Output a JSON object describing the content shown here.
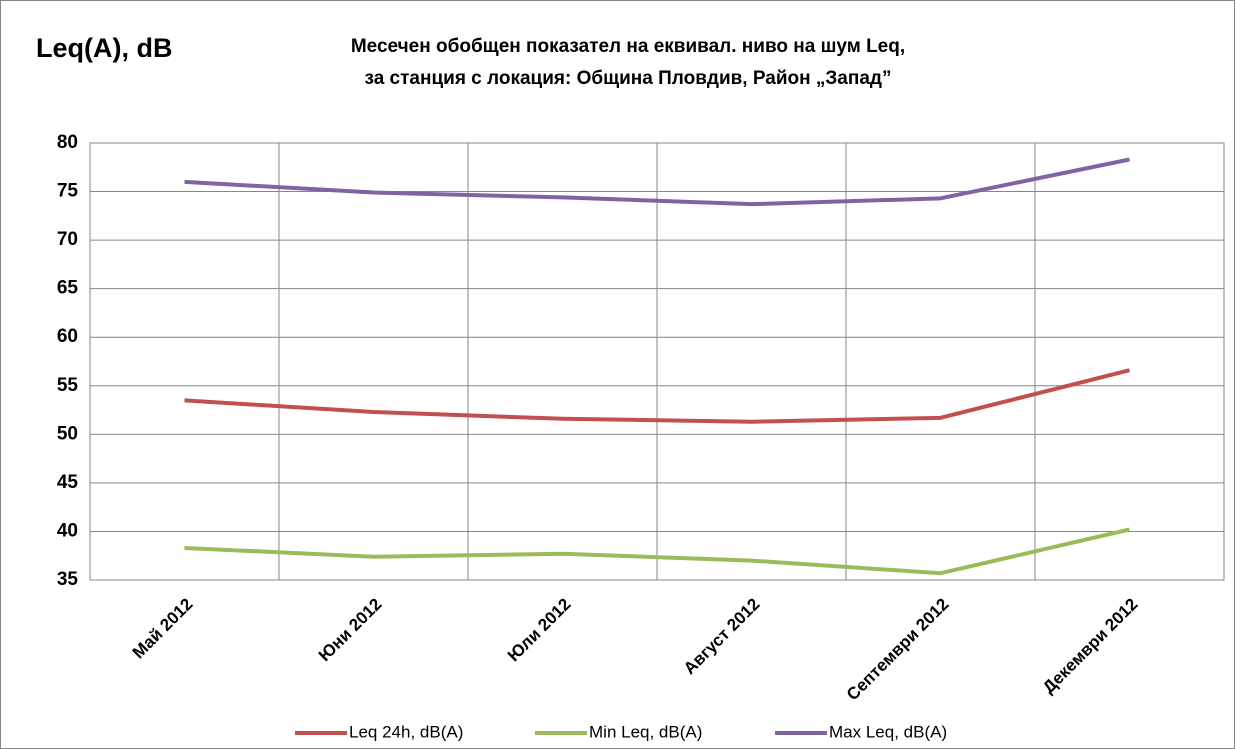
{
  "chart_data": {
    "type": "line",
    "title": [
      "Месечен обобщен показател на еквивал. ниво на шум Leq,",
      "за станция с локация: Община Пловдив, Район „Запад”"
    ],
    "y_label": "Leq(A), dB",
    "categories": [
      "Май 2012",
      "Юни 2012",
      "Юли 2012",
      "Август 2012",
      "Септември 2012",
      "Декември 2012"
    ],
    "series": [
      {
        "name": "Leq 24h, dB(A)",
        "color": "#c0504d",
        "values": [
          53.5,
          52.3,
          51.6,
          51.3,
          51.7,
          56.6
        ]
      },
      {
        "name": "Min Leq, dB(A)",
        "color": "#9bbb59",
        "values": [
          38.3,
          37.4,
          37.7,
          37.0,
          35.7,
          40.2
        ]
      },
      {
        "name": "Max Leq, dB(A)",
        "color": "#8064a2",
        "values": [
          76.0,
          74.9,
          74.4,
          73.7,
          74.3,
          78.3
        ]
      }
    ],
    "ylim": [
      35,
      80
    ],
    "yticks": [
      35,
      40,
      45,
      50,
      55,
      60,
      65,
      70,
      75,
      80
    ],
    "grid": true,
    "legend": "bottom"
  }
}
